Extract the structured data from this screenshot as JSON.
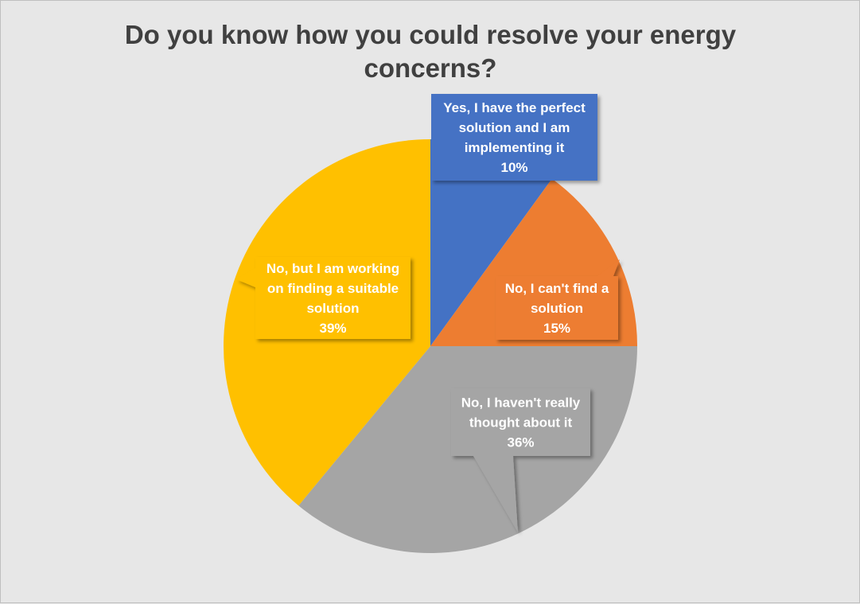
{
  "chart_data": {
    "type": "pie",
    "title": "Do you know how you could resolve your energy concerns?",
    "categories": [
      "Yes, I have the perfect solution and I am implementing it",
      "No, I can't find a solution",
      "No, I haven't really thought about it",
      "No, but I am working on finding a suitable solution"
    ],
    "values": [
      10,
      15,
      36,
      39
    ],
    "value_labels": [
      "10%",
      "15%",
      "36%",
      "39%"
    ],
    "label_lines": [
      [
        "Yes, I have the perfect",
        "solution and I am",
        "implementing it"
      ],
      [
        "No, I can't find a",
        "solution"
      ],
      [
        "No, I haven't really",
        "thought about it"
      ],
      [
        "No, but I am working",
        "on finding a suitable",
        "solution"
      ]
    ],
    "colors": [
      "#4472c4",
      "#ed7d31",
      "#a5a5a5",
      "#ffc000"
    ],
    "label_style": "callout",
    "legend": "none"
  }
}
